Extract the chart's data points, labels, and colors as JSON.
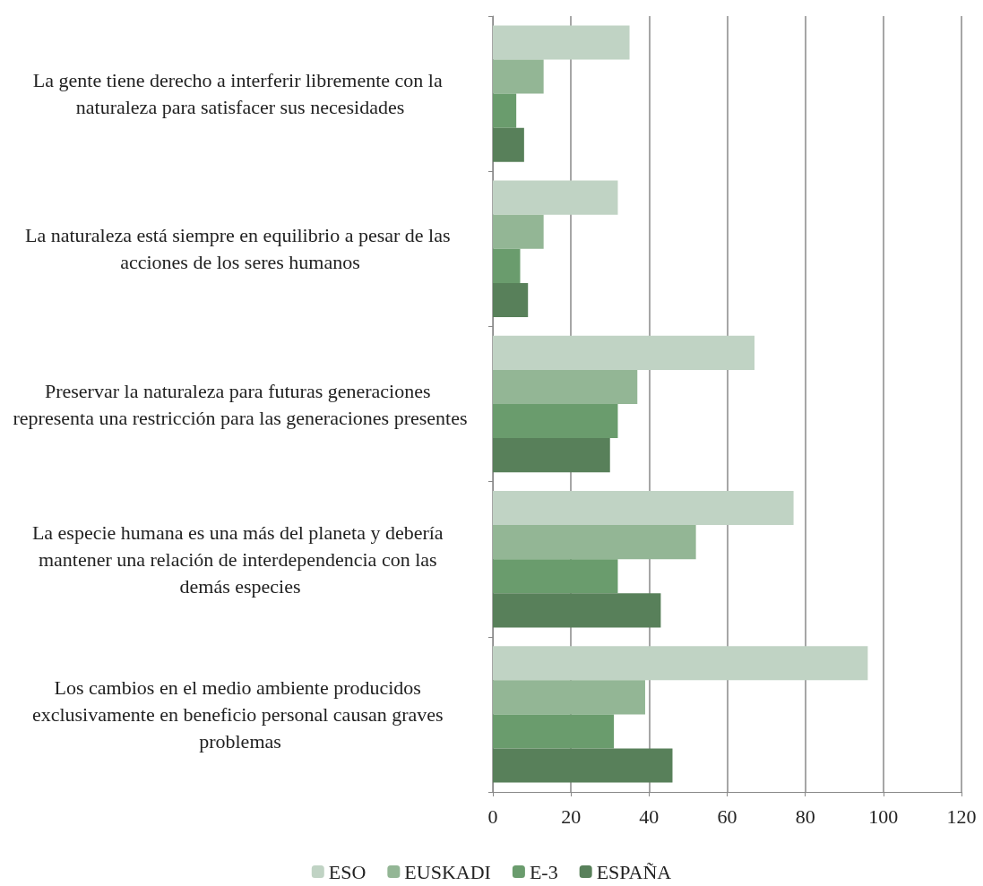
{
  "chart_data": {
    "type": "bar",
    "orientation": "horizontal",
    "categories": [
      "La gente tiene derecho a interferir libremente con la naturaleza para satisfacer sus necesidades",
      "La naturaleza está siempre en equilibrio a pesar de las acciones de los seres humanos",
      "Preservar la naturaleza para futuras generaciones representa una restricción para las generaciones presentes",
      "La especie humana es una más del planeta y debería mantener una relación de interdependencia con las demás especies",
      "Los cambios en el medio ambiente producidos exclusivamente en beneficio personal causan graves problemas"
    ],
    "series": [
      {
        "name": "ESO",
        "color": "#c0d3c4",
        "values": [
          35,
          32,
          67,
          77,
          96
        ]
      },
      {
        "name": "EUSKADI",
        "color": "#93b695",
        "values": [
          13,
          13,
          37,
          52,
          39
        ]
      },
      {
        "name": "E-3",
        "color": "#6a9c6d",
        "values": [
          6,
          7,
          32,
          32,
          31
        ]
      },
      {
        "name": "ESPAÑA",
        "color": "#58805a",
        "values": [
          8,
          9,
          30,
          43,
          46
        ]
      }
    ],
    "xlim": [
      0,
      120
    ],
    "xticks": [
      0,
      20,
      40,
      60,
      80,
      100,
      120
    ],
    "grid": "x",
    "legend": "bottom"
  }
}
